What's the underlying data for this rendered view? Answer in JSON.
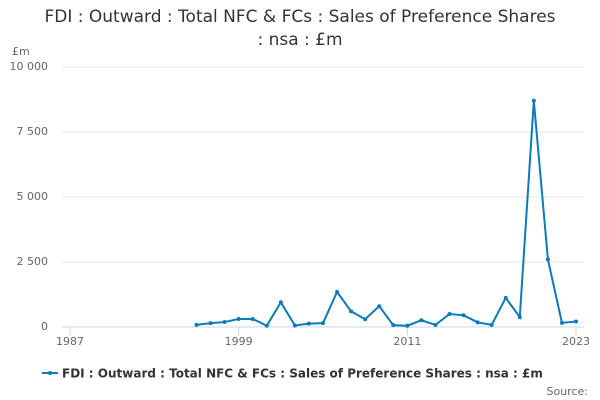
{
  "chart_data": {
    "type": "line",
    "title": "FDI : Outward : Total NFC & FCs : Sales of Preference Shares : nsa : £m",
    "y_label": "£m",
    "source": "Source:",
    "x": [
      1996,
      1997,
      1998,
      1999,
      2000,
      2001,
      2002,
      2003,
      2004,
      2005,
      2006,
      2007,
      2008,
      2009,
      2010,
      2011,
      2012,
      2013,
      2014,
      2015,
      2016,
      2017,
      2018,
      2019,
      2020,
      2021,
      2022,
      2023
    ],
    "series": [
      {
        "name": "FDI : Outward : Total NFC & FCs : Sales of Preference Shares : nsa : £m",
        "color": "#0a7bbb",
        "values": [
          80,
          150,
          190,
          310,
          310,
          50,
          950,
          60,
          130,
          150,
          1350,
          600,
          300,
          800,
          70,
          50,
          260,
          80,
          500,
          450,
          180,
          80,
          1120,
          380,
          8700,
          2600,
          160,
          210
        ]
      }
    ],
    "xlim": [
      1987,
      2023
    ],
    "xticks": [
      1987,
      1999,
      2011,
      2023
    ],
    "ylim": [
      0,
      10000
    ],
    "yticks": [
      0,
      {
        "value": 2500,
        "label": "2 500"
      },
      {
        "value": 5000,
        "label": "5 000"
      },
      {
        "value": 7500,
        "label": "7 500"
      },
      {
        "value": 10000,
        "label": "10 000"
      }
    ],
    "grid": true
  }
}
